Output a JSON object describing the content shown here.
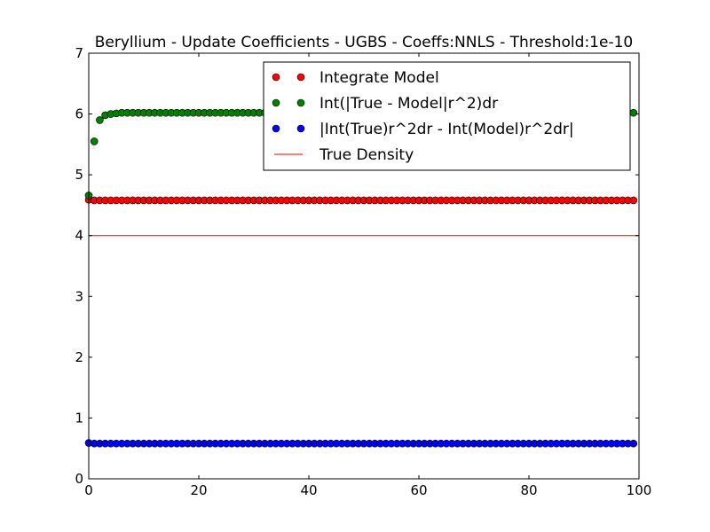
{
  "chart_data": {
    "type": "scatter",
    "title": "Beryllium - Update Coefficients - UGBS - Coeffs:NNLS - Threshold:1e-10",
    "xlabel": "",
    "ylabel": "",
    "xlim": [
      0,
      100
    ],
    "ylim": [
      0,
      7
    ],
    "x_ticks": [
      "0",
      "20",
      "40",
      "60",
      "80",
      "100"
    ],
    "y_ticks": [
      "0",
      "1",
      "2",
      "3",
      "4",
      "5",
      "6",
      "7"
    ],
    "legend_position": "top-right",
    "grid": false,
    "x": [
      0,
      1,
      2,
      3,
      4,
      5,
      6,
      7,
      8,
      9,
      10,
      11,
      12,
      13,
      14,
      15,
      16,
      17,
      18,
      19,
      20,
      21,
      22,
      23,
      24,
      25,
      26,
      27,
      28,
      29,
      30,
      31,
      32,
      33,
      34,
      35,
      36,
      37,
      38,
      39,
      40,
      41,
      42,
      43,
      44,
      45,
      46,
      47,
      48,
      49,
      50,
      51,
      52,
      53,
      54,
      55,
      56,
      57,
      58,
      59,
      60,
      61,
      62,
      63,
      64,
      65,
      66,
      67,
      68,
      69,
      70,
      71,
      72,
      73,
      74,
      75,
      76,
      77,
      78,
      79,
      80,
      81,
      82,
      83,
      84,
      85,
      86,
      87,
      88,
      89,
      90,
      91,
      92,
      93,
      94,
      95,
      96,
      97,
      98,
      99
    ],
    "series": [
      {
        "name": "Integrate Model",
        "kind": "scatter",
        "color": "#ff0000",
        "values": [
          4.59,
          4.58,
          4.58,
          4.58,
          4.58,
          4.58,
          4.58,
          4.58,
          4.58,
          4.58,
          4.58,
          4.58,
          4.58,
          4.58,
          4.58,
          4.58,
          4.58,
          4.58,
          4.58,
          4.58,
          4.58,
          4.58,
          4.58,
          4.58,
          4.58,
          4.58,
          4.58,
          4.58,
          4.58,
          4.58,
          4.58,
          4.58,
          4.58,
          4.58,
          4.58,
          4.58,
          4.58,
          4.58,
          4.58,
          4.58,
          4.58,
          4.58,
          4.58,
          4.58,
          4.58,
          4.58,
          4.58,
          4.58,
          4.58,
          4.58,
          4.58,
          4.58,
          4.58,
          4.58,
          4.58,
          4.58,
          4.58,
          4.58,
          4.58,
          4.58,
          4.58,
          4.58,
          4.58,
          4.58,
          4.58,
          4.58,
          4.58,
          4.58,
          4.58,
          4.58,
          4.58,
          4.58,
          4.58,
          4.58,
          4.58,
          4.58,
          4.58,
          4.58,
          4.58,
          4.58,
          4.58,
          4.58,
          4.58,
          4.58,
          4.58,
          4.58,
          4.58,
          4.58,
          4.58,
          4.58,
          4.58,
          4.58,
          4.58,
          4.58,
          4.58,
          4.58,
          4.58,
          4.58,
          4.58,
          4.58
        ]
      },
      {
        "name": "Int(|True - Model|r^2)dr",
        "kind": "scatter",
        "color": "#008000",
        "values": [
          4.66,
          5.55,
          5.9,
          5.98,
          6.0,
          6.01,
          6.02,
          6.02,
          6.02,
          6.02,
          6.02,
          6.02,
          6.02,
          6.02,
          6.02,
          6.02,
          6.02,
          6.02,
          6.02,
          6.02,
          6.02,
          6.02,
          6.02,
          6.02,
          6.02,
          6.02,
          6.02,
          6.02,
          6.02,
          6.02,
          6.02,
          6.02,
          6.02,
          6.02,
          6.02,
          6.02,
          6.02,
          6.02,
          6.02,
          6.02,
          6.02,
          6.02,
          6.02,
          6.02,
          6.02,
          6.02,
          6.02,
          6.02,
          6.02,
          6.02,
          6.02,
          6.02,
          6.02,
          6.02,
          6.02,
          6.02,
          6.02,
          6.02,
          6.02,
          6.02,
          6.02,
          6.02,
          6.02,
          6.02,
          6.02,
          6.02,
          6.02,
          6.02,
          6.02,
          6.02,
          6.02,
          6.02,
          6.02,
          6.02,
          6.02,
          6.02,
          6.02,
          6.02,
          6.02,
          6.02,
          6.02,
          6.02,
          6.02,
          6.02,
          6.02,
          6.02,
          6.02,
          6.02,
          6.02,
          6.02,
          6.02,
          6.02,
          6.02,
          6.02,
          6.02,
          6.02,
          6.02,
          6.02,
          6.02,
          6.02
        ]
      },
      {
        "name": "|Int(True)r^2dr - Int(Model)r^2dr|",
        "kind": "scatter",
        "color": "#0000ff",
        "values": [
          0.59,
          0.58,
          0.58,
          0.58,
          0.58,
          0.58,
          0.58,
          0.58,
          0.58,
          0.58,
          0.58,
          0.58,
          0.58,
          0.58,
          0.58,
          0.58,
          0.58,
          0.58,
          0.58,
          0.58,
          0.58,
          0.58,
          0.58,
          0.58,
          0.58,
          0.58,
          0.58,
          0.58,
          0.58,
          0.58,
          0.58,
          0.58,
          0.58,
          0.58,
          0.58,
          0.58,
          0.58,
          0.58,
          0.58,
          0.58,
          0.58,
          0.58,
          0.58,
          0.58,
          0.58,
          0.58,
          0.58,
          0.58,
          0.58,
          0.58,
          0.58,
          0.58,
          0.58,
          0.58,
          0.58,
          0.58,
          0.58,
          0.58,
          0.58,
          0.58,
          0.58,
          0.58,
          0.58,
          0.58,
          0.58,
          0.58,
          0.58,
          0.58,
          0.58,
          0.58,
          0.58,
          0.58,
          0.58,
          0.58,
          0.58,
          0.58,
          0.58,
          0.58,
          0.58,
          0.58,
          0.58,
          0.58,
          0.58,
          0.58,
          0.58,
          0.58,
          0.58,
          0.58,
          0.58,
          0.58,
          0.58,
          0.58,
          0.58,
          0.58,
          0.58,
          0.58,
          0.58,
          0.58,
          0.58,
          0.58
        ]
      },
      {
        "name": "True Density",
        "kind": "line",
        "color": "#ff0000",
        "x": [
          0,
          100
        ],
        "values": [
          4,
          4
        ]
      }
    ]
  }
}
